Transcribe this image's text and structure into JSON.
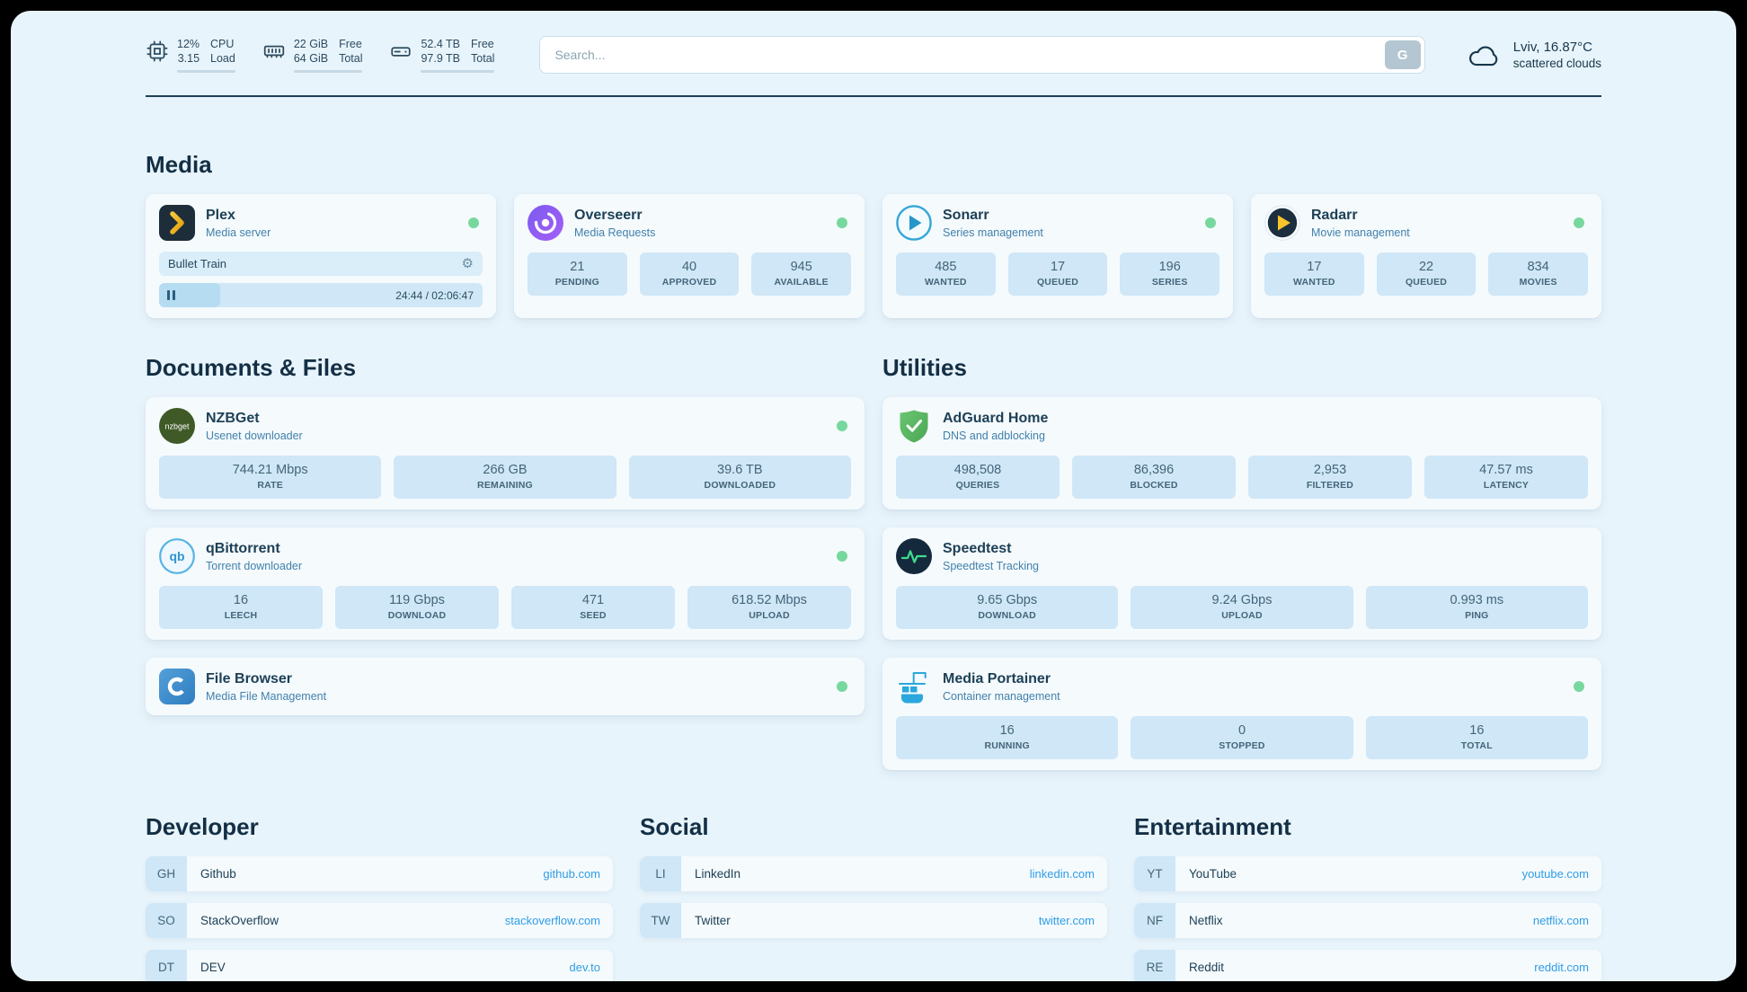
{
  "colors": {
    "accent": "#2f9de6",
    "status_green": "#77d89d",
    "background": "#e8f4fb",
    "stat_box": "#cfe7f7"
  },
  "topbar": {
    "stats": [
      {
        "icon": "cpu-chip-icon",
        "value1": "12%",
        "value2": "3.15",
        "label1": "CPU",
        "label2": "Load",
        "progress_pct": 12
      },
      {
        "icon": "memory-icon",
        "value1": "22 GiB",
        "value2": "64 GiB",
        "label1": "Free",
        "label2": "Total",
        "progress_pct": 34
      },
      {
        "icon": "disk-icon",
        "value1": "52.4 TB",
        "value2": "97.9 TB",
        "label1": "Free",
        "label2": "Total",
        "progress_pct": 54
      }
    ],
    "search": {
      "placeholder": "Search...",
      "button_label": "G"
    },
    "weather": {
      "icon": "cloud-icon",
      "location_temp": "Lviv, 16.87°C",
      "condition": "scattered clouds"
    }
  },
  "media": {
    "heading": "Media",
    "plex": {
      "icon": "plex-icon",
      "title": "Plex",
      "subtitle": "Media server",
      "status": "online",
      "now_playing": "Bullet Train",
      "elapsed_total": "24:44 / 02:06:47",
      "progress_pct": 19
    },
    "overseerr": {
      "icon": "overseerr-icon",
      "title": "Overseerr",
      "subtitle": "Media Requests",
      "status": "online",
      "stats": [
        {
          "value": "21",
          "label": "PENDING"
        },
        {
          "value": "40",
          "label": "APPROVED"
        },
        {
          "value": "945",
          "label": "AVAILABLE"
        }
      ]
    },
    "sonarr": {
      "icon": "sonarr-icon",
      "title": "Sonarr",
      "subtitle": "Series management",
      "status": "online",
      "stats": [
        {
          "value": "485",
          "label": "WANTED"
        },
        {
          "value": "17",
          "label": "QUEUED"
        },
        {
          "value": "196",
          "label": "SERIES"
        }
      ]
    },
    "radarr": {
      "icon": "radarr-icon",
      "title": "Radarr",
      "subtitle": "Movie management",
      "status": "online",
      "stats": [
        {
          "value": "17",
          "label": "WANTED"
        },
        {
          "value": "22",
          "label": "QUEUED"
        },
        {
          "value": "834",
          "label": "MOVIES"
        }
      ]
    }
  },
  "documents": {
    "heading": "Documents & Files",
    "nzbget": {
      "icon": "nzbget-icon",
      "icon_text": "nzbget",
      "title": "NZBGet",
      "subtitle": "Usenet downloader",
      "status": "online",
      "stats": [
        {
          "value": "744.21 Mbps",
          "label": "RATE"
        },
        {
          "value": "266 GB",
          "label": "REMAINING"
        },
        {
          "value": "39.6 TB",
          "label": "DOWNLOADED"
        }
      ]
    },
    "qbittorrent": {
      "icon": "qbittorrent-icon",
      "icon_text": "qb",
      "title": "qBittorrent",
      "subtitle": "Torrent downloader",
      "status": "online",
      "stats": [
        {
          "value": "16",
          "label": "LEECH"
        },
        {
          "value": "119 Gbps",
          "label": "DOWNLOAD"
        },
        {
          "value": "471",
          "label": "SEED"
        },
        {
          "value": "618.52 Mbps",
          "label": "UPLOAD"
        }
      ]
    },
    "filebrowser": {
      "icon": "filebrowser-icon",
      "title": "File Browser",
      "subtitle": "Media File Management",
      "status": "online"
    }
  },
  "utilities": {
    "heading": "Utilities",
    "adguard": {
      "icon": "adguard-icon",
      "title": "AdGuard Home",
      "subtitle": "DNS and adblocking",
      "stats": [
        {
          "value": "498,508",
          "label": "QUERIES"
        },
        {
          "value": "86,396",
          "label": "BLOCKED"
        },
        {
          "value": "2,953",
          "label": "FILTERED"
        },
        {
          "value": "47.57 ms",
          "label": "LATENCY"
        }
      ]
    },
    "speedtest": {
      "icon": "speedtest-icon",
      "title": "Speedtest",
      "subtitle": "Speedtest Tracking",
      "stats": [
        {
          "value": "9.65 Gbps",
          "label": "DOWNLOAD"
        },
        {
          "value": "9.24 Gbps",
          "label": "UPLOAD"
        },
        {
          "value": "0.993 ms",
          "label": "PING"
        }
      ]
    },
    "portainer": {
      "icon": "portainer-icon",
      "title": "Media Portainer",
      "subtitle": "Container management",
      "status": "online",
      "stats": [
        {
          "value": "16",
          "label": "RUNNING"
        },
        {
          "value": "0",
          "label": "STOPPED"
        },
        {
          "value": "16",
          "label": "TOTAL"
        }
      ]
    }
  },
  "bookmarks": {
    "developer": {
      "heading": "Developer",
      "items": [
        {
          "abbr": "GH",
          "label": "Github",
          "link": "github.com"
        },
        {
          "abbr": "SO",
          "label": "StackOverflow",
          "link": "stackoverflow.com"
        },
        {
          "abbr": "DT",
          "label": "DEV",
          "link": "dev.to"
        }
      ]
    },
    "social": {
      "heading": "Social",
      "items": [
        {
          "abbr": "LI",
          "label": "LinkedIn",
          "link": "linkedin.com"
        },
        {
          "abbr": "TW",
          "label": "Twitter",
          "link": "twitter.com"
        }
      ]
    },
    "entertainment": {
      "heading": "Entertainment",
      "items": [
        {
          "abbr": "YT",
          "label": "YouTube",
          "link": "youtube.com"
        },
        {
          "abbr": "NF",
          "label": "Netflix",
          "link": "netflix.com"
        },
        {
          "abbr": "RE",
          "label": "Reddit",
          "link": "reddit.com"
        }
      ]
    }
  }
}
